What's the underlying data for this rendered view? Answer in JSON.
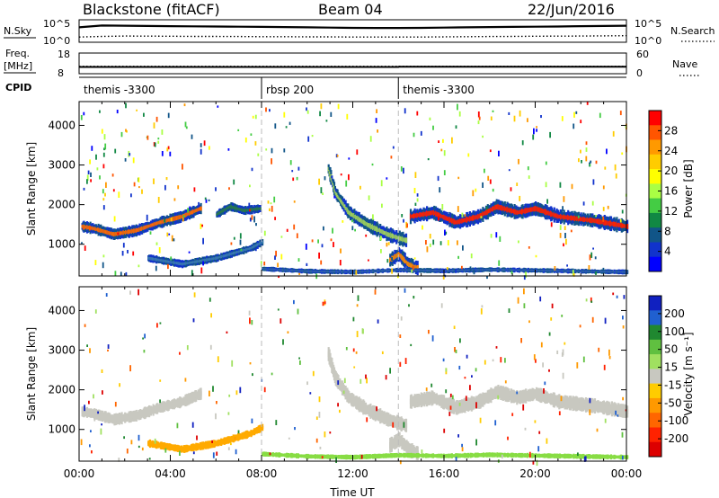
{
  "header": {
    "station": "Blackstone (fitACF)",
    "beam": "Beam 04",
    "date": "22/Jun/2016"
  },
  "colors": {
    "frame": "#000000",
    "ground_scatter": "#c8c8c0",
    "dash": "#bbbbbb"
  },
  "chart_data": [
    {
      "type": "line",
      "name": "sky-search-noise",
      "left_labels": [
        "N.Sky"
      ],
      "right_labels": [
        "N.Search"
      ],
      "left_ticks": [
        "10^5",
        "10^0"
      ],
      "right_ticks": [
        "10^5",
        "10^0"
      ],
      "yscale": "log",
      "ylim": [
        1,
        100000
      ],
      "x": [
        0,
        1,
        2,
        3,
        4,
        5,
        6,
        7,
        8,
        9,
        10,
        11,
        12,
        13,
        14,
        15,
        16,
        17,
        18,
        19,
        20,
        21,
        22,
        23,
        24
      ],
      "series": [
        {
          "name": "N.Sky",
          "style": "solid",
          "values": [
            3000,
            9000,
            8000,
            7000,
            6000,
            5500,
            5000,
            4500,
            4000,
            3500,
            3000,
            2500,
            2200,
            2000,
            2000,
            2200,
            2600,
            3000,
            3500,
            4000,
            4500,
            5000,
            6000,
            7000,
            8000
          ]
        },
        {
          "name": "N.Search",
          "style": "dotted",
          "values": [
            8,
            12,
            15,
            14,
            13,
            12,
            12,
            11,
            10,
            10,
            9,
            9,
            8,
            8,
            8,
            8,
            9,
            10,
            11,
            12,
            13,
            14,
            15,
            16,
            18
          ]
        }
      ]
    },
    {
      "type": "line",
      "name": "frequency-nave",
      "left_labels": [
        "Freq.",
        "[MHz]"
      ],
      "right_labels": [
        "Nave"
      ],
      "left_ticks": [
        "18",
        "8"
      ],
      "right_ticks": [
        "60",
        "0"
      ],
      "ylim": [
        8,
        18
      ],
      "x": [
        0,
        6,
        12,
        14,
        14.01,
        24
      ],
      "series": [
        {
          "name": "Freq. [MHz]",
          "style": "solid",
          "values": [
            10.9,
            10.9,
            10.9,
            10.9,
            11.0,
            11.0
          ]
        },
        {
          "name": "Nave",
          "style": "dotted",
          "values": [
            20,
            20,
            20,
            20,
            20,
            20
          ]
        }
      ]
    },
    {
      "type": "table",
      "name": "cpid",
      "label": "CPID",
      "segments": [
        {
          "start": 0,
          "end": 8,
          "text": "themis -3300"
        },
        {
          "start": 8,
          "end": 14,
          "text": "rbsp 200"
        },
        {
          "start": 14,
          "end": 24,
          "text": "themis -3300"
        }
      ]
    },
    {
      "type": "heatmap",
      "name": "power",
      "ylabel": "Slant Range [km]",
      "xlim": [
        0,
        24
      ],
      "ylim": [
        200,
        4600
      ],
      "yticks": [
        1000,
        2000,
        3000,
        4000
      ],
      "colorbar": {
        "label": "Power [dB]",
        "ticks": [
          "28",
          "24",
          "20",
          "16",
          "12",
          "8",
          "4"
        ],
        "colors": [
          "#ff0000",
          "#ff5500",
          "#ff9900",
          "#ffcc00",
          "#ffff00",
          "#aaff44",
          "#44cc44",
          "#118844",
          "#115588",
          "#1133cc",
          "#0000ff"
        ]
      },
      "bands": [
        {
          "x": [
            0.1,
            0.6,
            1.5,
            2.5,
            3.5,
            4.5,
            5.3
          ],
          "y": [
            1450,
            1400,
            1250,
            1350,
            1550,
            1700,
            1900
          ],
          "half_width": 120,
          "peak": "#ff6a00"
        },
        {
          "x": [
            6.0,
            6.6,
            7.2,
            7.9
          ],
          "y": [
            1750,
            1950,
            1850,
            1900
          ],
          "half_width": 90,
          "peak": "#2a7a4a"
        },
        {
          "x": [
            3.0,
            4.5,
            6.0,
            7.5,
            8.0
          ],
          "y": [
            650,
            500,
            650,
            900,
            1050
          ],
          "half_width": 80,
          "peak": "#3a7ab0"
        },
        {
          "x": [
            10.9,
            11.2,
            11.8,
            12.6,
            13.5,
            14.3
          ],
          "y": [
            2900,
            2300,
            1800,
            1500,
            1250,
            1100
          ],
          "half_width": 150,
          "peak": "#9fd05a"
        },
        {
          "x": [
            13.6,
            14.0,
            14.4,
            14.8
          ],
          "y": [
            600,
            750,
            500,
            400
          ],
          "half_width": 150,
          "peak": "#ff8800"
        },
        {
          "x": [
            14.5,
            15.5,
            16.5,
            17.5,
            18.3,
            19.2,
            20.0,
            21.0,
            22.5,
            24.0
          ],
          "y": [
            1700,
            1800,
            1550,
            1700,
            1950,
            1800,
            1900,
            1700,
            1600,
            1450
          ],
          "half_width": 150,
          "peak": "#ff2200"
        },
        {
          "x": [
            8.0,
            10.0,
            12.0,
            14.0,
            16.0,
            18.0,
            20.0,
            22.0,
            24.0
          ],
          "y": [
            380,
            320,
            300,
            350,
            330,
            360,
            340,
            320,
            300
          ],
          "half_width": 50,
          "peak": "#3060b0"
        }
      ],
      "scatter_density": 420
    },
    {
      "type": "heatmap",
      "name": "velocity",
      "ylabel": "Slant Range [km]",
      "xlabel": "Time UT",
      "xlim": [
        0,
        24
      ],
      "ylim": [
        200,
        4600
      ],
      "xticks": [
        "00:00",
        "04:00",
        "08:00",
        "12:00",
        "16:00",
        "20:00",
        "00:00"
      ],
      "yticks": [
        1000,
        2000,
        3000,
        4000
      ],
      "colorbar": {
        "label": "Velocity [m s⁻¹]",
        "ticks": [
          "200",
          "100",
          "50",
          "15",
          "-15",
          "-50",
          "-100",
          "-200"
        ],
        "colors": [
          "#1020c0",
          "#2060d0",
          "#208830",
          "#60c040",
          "#a0e060",
          "#c8c8c0",
          "#ffcc00",
          "#ff9900",
          "#ff6600",
          "#ff2200",
          "#dd0000"
        ]
      },
      "bands": [
        {
          "x": [
            0.1,
            0.6,
            1.5,
            2.5,
            3.5,
            4.5,
            5.3
          ],
          "y": [
            1450,
            1400,
            1250,
            1350,
            1550,
            1700,
            1900
          ],
          "half_width": 120,
          "peak": "#c8c8c0"
        },
        {
          "x": [
            3.0,
            4.5,
            6.0,
            7.5,
            8.0
          ],
          "y": [
            650,
            500,
            650,
            900,
            1050
          ],
          "half_width": 80,
          "peak": "#ffaa00"
        },
        {
          "x": [
            10.9,
            11.2,
            11.8,
            12.6,
            13.5,
            14.3
          ],
          "y": [
            2900,
            2300,
            1800,
            1500,
            1250,
            1100
          ],
          "half_width": 150,
          "peak": "#c8c8c0"
        },
        {
          "x": [
            13.6,
            14.0,
            14.4,
            14.8
          ],
          "y": [
            600,
            750,
            500,
            400
          ],
          "half_width": 150,
          "peak": "#c8c8c0"
        },
        {
          "x": [
            14.5,
            15.5,
            16.5,
            17.5,
            18.3,
            19.2,
            20.0,
            21.0,
            22.5,
            24.0
          ],
          "y": [
            1700,
            1800,
            1550,
            1700,
            1950,
            1800,
            1900,
            1700,
            1600,
            1450
          ],
          "half_width": 150,
          "peak": "#c8c8c0"
        },
        {
          "x": [
            8.0,
            10.0,
            12.0,
            14.0,
            16.0,
            18.0,
            20.0,
            22.0,
            24.0
          ],
          "y": [
            380,
            320,
            300,
            350,
            330,
            360,
            340,
            320,
            300
          ],
          "half_width": 50,
          "peak": "#88dd44"
        }
      ],
      "scatter_density": 260
    }
  ]
}
